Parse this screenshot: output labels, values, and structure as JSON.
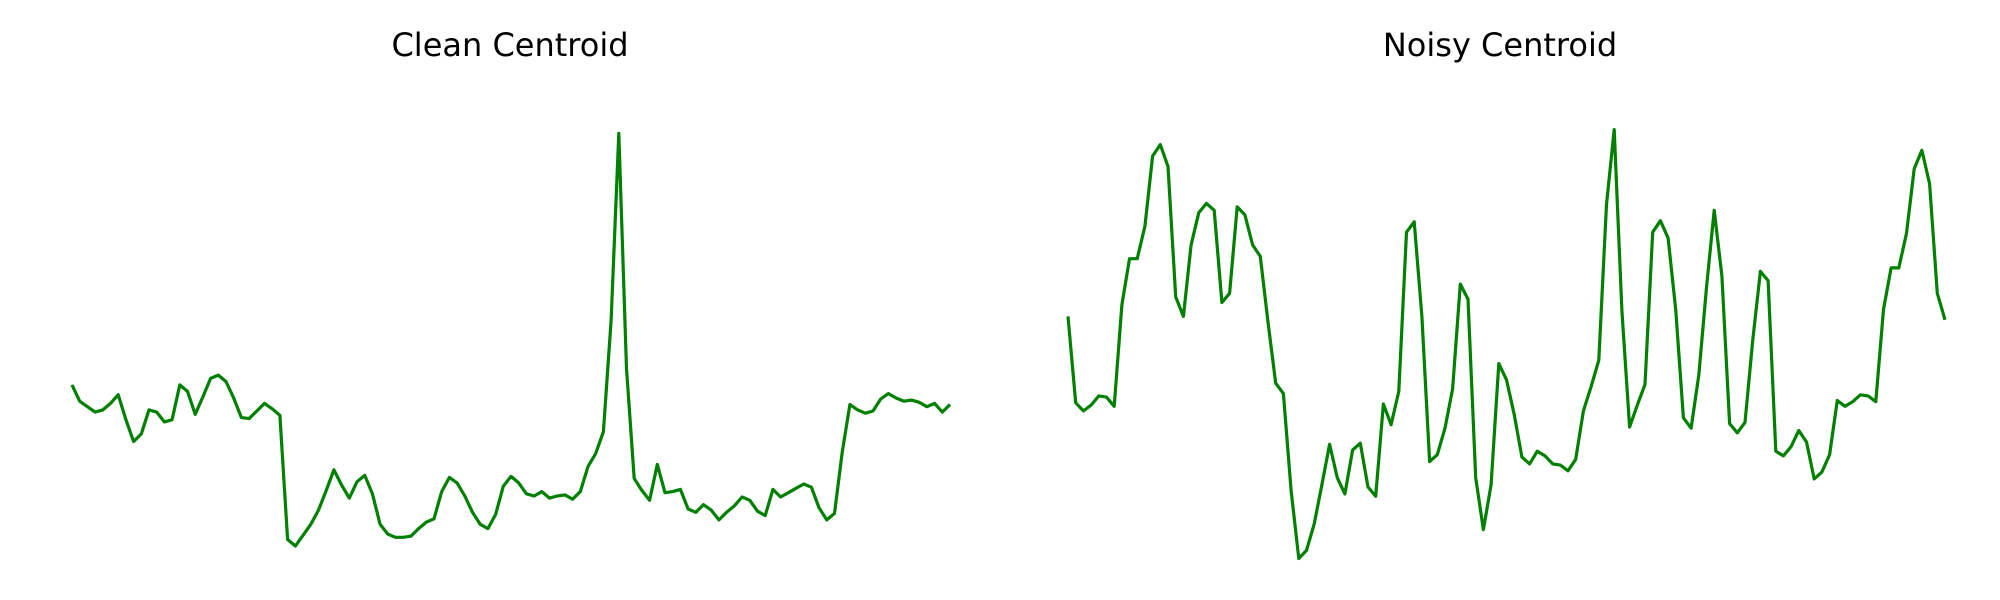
{
  "chart_data": [
    {
      "type": "line",
      "title": "Clean Centroid",
      "xlabel": "",
      "ylabel": "",
      "grid": false,
      "axes_visible": false,
      "color": "#008000",
      "ylim": [
        -1.7,
        2.8
      ],
      "series": [
        {
          "values": [
            0.0,
            -0.15,
            -0.2,
            -0.25,
            -0.23,
            -0.17,
            -0.09,
            -0.32,
            -0.52,
            -0.45,
            -0.23,
            -0.25,
            -0.34,
            -0.32,
            0.0,
            -0.06,
            -0.27,
            -0.11,
            0.06,
            0.09,
            0.03,
            -0.12,
            -0.3,
            -0.31,
            -0.24,
            -0.17,
            -0.22,
            -0.28,
            -1.42,
            -1.48,
            -1.38,
            -1.28,
            -1.15,
            -0.97,
            -0.78,
            -0.92,
            -1.04,
            -0.89,
            -0.83,
            -1.0,
            -1.28,
            -1.37,
            -1.4,
            -1.4,
            -1.39,
            -1.32,
            -1.26,
            -1.23,
            -0.98,
            -0.85,
            -0.9,
            -1.02,
            -1.17,
            -1.28,
            -1.32,
            -1.19,
            -0.93,
            -0.84,
            -0.9,
            -1.0,
            -1.02,
            -0.98,
            -1.04,
            -1.02,
            -1.01,
            -1.05,
            -0.98,
            -0.75,
            -0.63,
            -0.43,
            0.59,
            2.31,
            0.15,
            -0.86,
            -0.97,
            -1.06,
            -0.73,
            -0.99,
            -0.98,
            -0.96,
            -1.14,
            -1.17,
            -1.1,
            -1.15,
            -1.24,
            -1.17,
            -1.11,
            -1.03,
            -1.06,
            -1.16,
            -1.2,
            -0.96,
            -1.03,
            -0.99,
            -0.95,
            -0.91,
            -0.94,
            -1.13,
            -1.24,
            -1.18,
            -0.62,
            -0.18,
            -0.23,
            -0.26,
            -0.24,
            -0.13,
            -0.08,
            -0.12,
            -0.15,
            -0.14,
            -0.16,
            -0.2,
            -0.17,
            -0.25,
            -0.18
          ]
        }
      ]
    },
    {
      "type": "line",
      "title": "Noisy Centroid",
      "xlabel": "",
      "ylabel": "",
      "grid": false,
      "axes_visible": false,
      "color": "#008000",
      "ylim": [
        -2.0,
        2.25
      ],
      "series": [
        {
          "values": [
            0.2,
            -0.55,
            -0.62,
            -0.57,
            -0.49,
            -0.5,
            -0.58,
            0.3,
            0.7,
            0.7,
            0.98,
            1.59,
            1.69,
            1.5,
            0.37,
            0.2,
            0.82,
            1.1,
            1.18,
            1.12,
            0.32,
            0.4,
            1.15,
            1.08,
            0.82,
            0.72,
            0.15,
            -0.38,
            -0.47,
            -1.31,
            -1.9,
            -1.83,
            -1.6,
            -1.26,
            -0.91,
            -1.2,
            -1.34,
            -0.96,
            -0.9,
            -1.28,
            -1.36,
            -0.56,
            -0.74,
            -0.45,
            0.93,
            1.02,
            0.2,
            -1.06,
            -1.0,
            -0.77,
            -0.43,
            0.48,
            0.35,
            -1.2,
            -1.65,
            -1.26,
            -0.21,
            -0.35,
            -0.65,
            -1.02,
            -1.08,
            -0.97,
            -1.01,
            -1.08,
            -1.09,
            -1.14,
            -1.04,
            -0.62,
            -0.41,
            -0.18,
            1.17,
            1.82,
            0.25,
            -0.76,
            -0.57,
            -0.39,
            0.93,
            1.03,
            0.88,
            0.26,
            -0.68,
            -0.77,
            -0.31,
            0.45,
            1.12,
            0.55,
            -0.73,
            -0.81,
            -0.72,
            -0.01,
            0.59,
            0.51,
            -0.97,
            -1.01,
            -0.93,
            -0.79,
            -0.89,
            -1.21,
            -1.15,
            -1.0,
            -0.53,
            -0.58,
            -0.54,
            -0.48,
            -0.49,
            -0.54,
            0.26,
            0.62,
            0.62,
            0.92,
            1.48,
            1.64,
            1.35,
            0.4,
            0.17
          ]
        }
      ]
    }
  ]
}
